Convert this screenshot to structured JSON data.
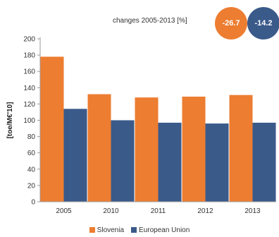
{
  "chart_data": {
    "type": "bar",
    "categories": [
      "2005",
      "2010",
      "2011",
      "2012",
      "2013"
    ],
    "series": [
      {
        "name": "Slovenia",
        "values": [
          178,
          132,
          128,
          129,
          131
        ],
        "color": "#ed7d31"
      },
      {
        "name": "European Union",
        "values": [
          114,
          100,
          97,
          96,
          97
        ],
        "color": "#3a5a8a"
      }
    ],
    "ylabel": "[toe/M€'10]",
    "ylim": [
      0,
      200
    ],
    "yticks": [
      0,
      20,
      40,
      60,
      80,
      100,
      120,
      140,
      160,
      180,
      200
    ],
    "grid": false,
    "legend_position": "bottom",
    "changes": {
      "title": "changes 2005-2013 [%]",
      "values": [
        {
          "value": "-26.7",
          "color": "#ed7d31"
        },
        {
          "value": "-14.2",
          "color": "#3a5a8a"
        }
      ]
    }
  }
}
